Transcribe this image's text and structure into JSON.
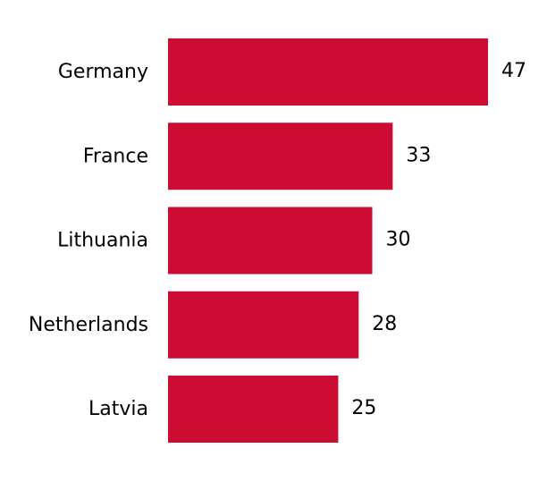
{
  "chart_data": {
    "type": "bar",
    "orientation": "horizontal",
    "categories": [
      "Germany",
      "France",
      "Lithuania",
      "Netherlands",
      "Latvia"
    ],
    "values": [
      47,
      33,
      30,
      28,
      25
    ],
    "xlim": [
      0,
      47
    ],
    "bar_color": "#cc0c32",
    "data_labels": true,
    "axes_visible": false,
    "grid": false
  }
}
